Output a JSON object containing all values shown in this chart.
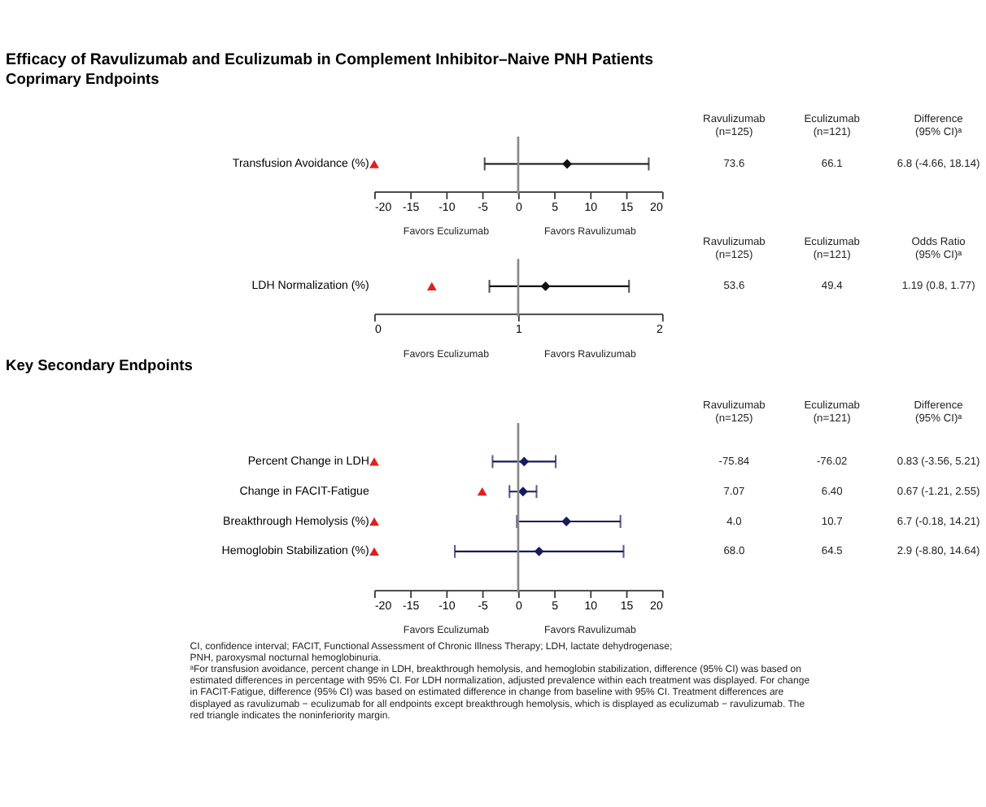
{
  "chart_data": [
    {
      "type": "scatter",
      "orientation": "horizontal",
      "title": "Efficacy of Ravulizumab and Eculizumab in Complement Inhibitor–Naive PNH Patients",
      "subtitle": "Coprimary Endpoints",
      "categories": [
        "Transfusion Avoidance (%)"
      ],
      "series": [
        {
          "color": "#e0201b",
          "marker": "triangle",
          "values": [
            -20
          ]
        },
        {
          "color": "#111111",
          "marker": "diamond",
          "values": [
            6.8
          ],
          "errors": [
            [
              -4.66,
              18.14
            ]
          ]
        }
      ],
      "xlim": [
        -20,
        20
      ],
      "xticks": [
        -20,
        -15,
        -10,
        -5,
        0,
        5,
        10,
        15,
        20
      ],
      "grid": false,
      "ref_lines": [
        {
          "axis": "x",
          "value": 0
        }
      ],
      "annotations": [
        "Ravulizumab\n(n=125)",
        "Eculizumab\n(n=121)",
        "Difference\n(95% CI)ᵃ",
        "73.6",
        "66.1",
        "6.8 (-4.66, 18.14)",
        "Favors Eculizumab",
        "Favors Ravulizumab"
      ]
    },
    {
      "type": "scatter",
      "orientation": "horizontal",
      "categories": [
        "LDH Normalization (%)"
      ],
      "series": [
        {
          "color": "#e0201b",
          "marker": "triangle",
          "values": [
            0.4
          ]
        },
        {
          "color": "#111111",
          "marker": "diamond",
          "values": [
            1.19
          ],
          "errors": [
            [
              0.8,
              1.77
            ]
          ]
        }
      ],
      "xlim": [
        0,
        2
      ],
      "xticks": [
        0,
        1,
        2
      ],
      "grid": false,
      "ref_lines": [
        {
          "axis": "x",
          "value": 1
        }
      ],
      "annotations": [
        "Ravulizumab\n(n=125)",
        "Eculizumab\n(n=121)",
        "Odds Ratio\n(95% CI)ᵃ",
        "53.6",
        "49.4",
        "1.19 (0.8, 1.77)",
        "Favors Eculizumab",
        "Favors Ravulizumab"
      ]
    },
    {
      "type": "scatter",
      "orientation": "horizontal",
      "subtitle": "Key Secondary Endpoints",
      "categories": [
        "Percent Change in LDH",
        "Change in FACIT-Fatigue",
        "Breakthrough Hemolysis (%)",
        "Hemoglobin Stabilization (%)"
      ],
      "series": [
        {
          "color": "#e0201b",
          "marker": "triangle",
          "values": [
            -20,
            -5,
            -20,
            -20
          ]
        },
        {
          "color": "#1a1a5e",
          "marker": "diamond",
          "values": [
            0.83,
            0.67,
            6.7,
            2.9
          ],
          "errors": [
            [
              -3.56,
              5.21
            ],
            [
              -1.21,
              2.55
            ],
            [
              -0.18,
              14.21
            ],
            [
              -8.8,
              14.64
            ]
          ]
        }
      ],
      "xlim": [
        -20,
        20
      ],
      "xticks": [
        -20,
        -15,
        -10,
        -5,
        0,
        5,
        10,
        15,
        20
      ],
      "grid": false,
      "ref_lines": [
        {
          "axis": "x",
          "value": 0
        }
      ],
      "annotations": [
        "Ravulizumab\n(n=125)",
        "Eculizumab\n(n=121)",
        "Difference\n(95% CI)ᵃ",
        "-75.84",
        "-76.02",
        "0.83 (-3.56, 5.21)",
        "7.07",
        "6.40",
        "0.67 (-1.21, 2.55)",
        "4.0",
        "10.7",
        "6.7 (-0.18, 14.21)",
        "68.0",
        "64.5",
        "2.9 (-8.80, 14.64)",
        "Favors Eculizumab",
        "Favors Ravulizumab",
        "CI, confidence interval; FACIT, Functional Assessment of Chronic Illness Therapy; LDH, lactate dehydrogenase;",
        "PNH, paroxysmal nocturnal hemoglobinuria.",
        "ᵃFor transfusion avoidance, percent change in LDH, breakthrough hemolysis, and hemoglobin stabilization, difference (95% CI) was based on estimated differences in percentage with 95% CI. For LDH normalization, adjusted prevalence within each treatment was displayed. For change in FACIT-Fatigue, difference (95% CI) was based on estimated difference in change from baseline with 95% CI. Treatment differences are displayed as ravulizumab − eculizumab for all endpoints except breakthrough hemolysis, which is displayed as eculizumab − ravulizumab. The red triangle indicates the noninferiority margin."
      ]
    }
  ]
}
